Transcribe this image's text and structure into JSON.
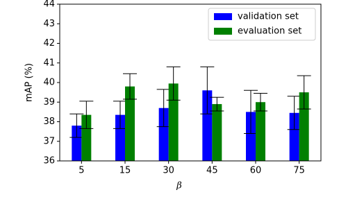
{
  "chart_data": {
    "type": "bar",
    "x_label": "β",
    "y_label": "mAP (%)",
    "categories": [
      "5",
      "15",
      "30",
      "45",
      "60",
      "75"
    ],
    "series": [
      {
        "name": "validation set",
        "color": "#0000ff",
        "values": [
          37.8,
          38.35,
          38.7,
          39.6,
          38.5,
          38.45
        ],
        "errors": [
          0.6,
          0.7,
          0.95,
          1.2,
          1.1,
          0.85
        ]
      },
      {
        "name": "evaluation set",
        "color": "#008000",
        "values": [
          38.35,
          39.8,
          39.95,
          38.9,
          39.0,
          39.5
        ],
        "errors": [
          0.7,
          0.65,
          0.85,
          0.35,
          0.45,
          0.85
        ]
      }
    ],
    "ylim": [
      36,
      44
    ],
    "yticks": [
      36,
      37,
      38,
      39,
      40,
      41,
      42,
      43,
      44
    ],
    "legend": "upper right"
  }
}
